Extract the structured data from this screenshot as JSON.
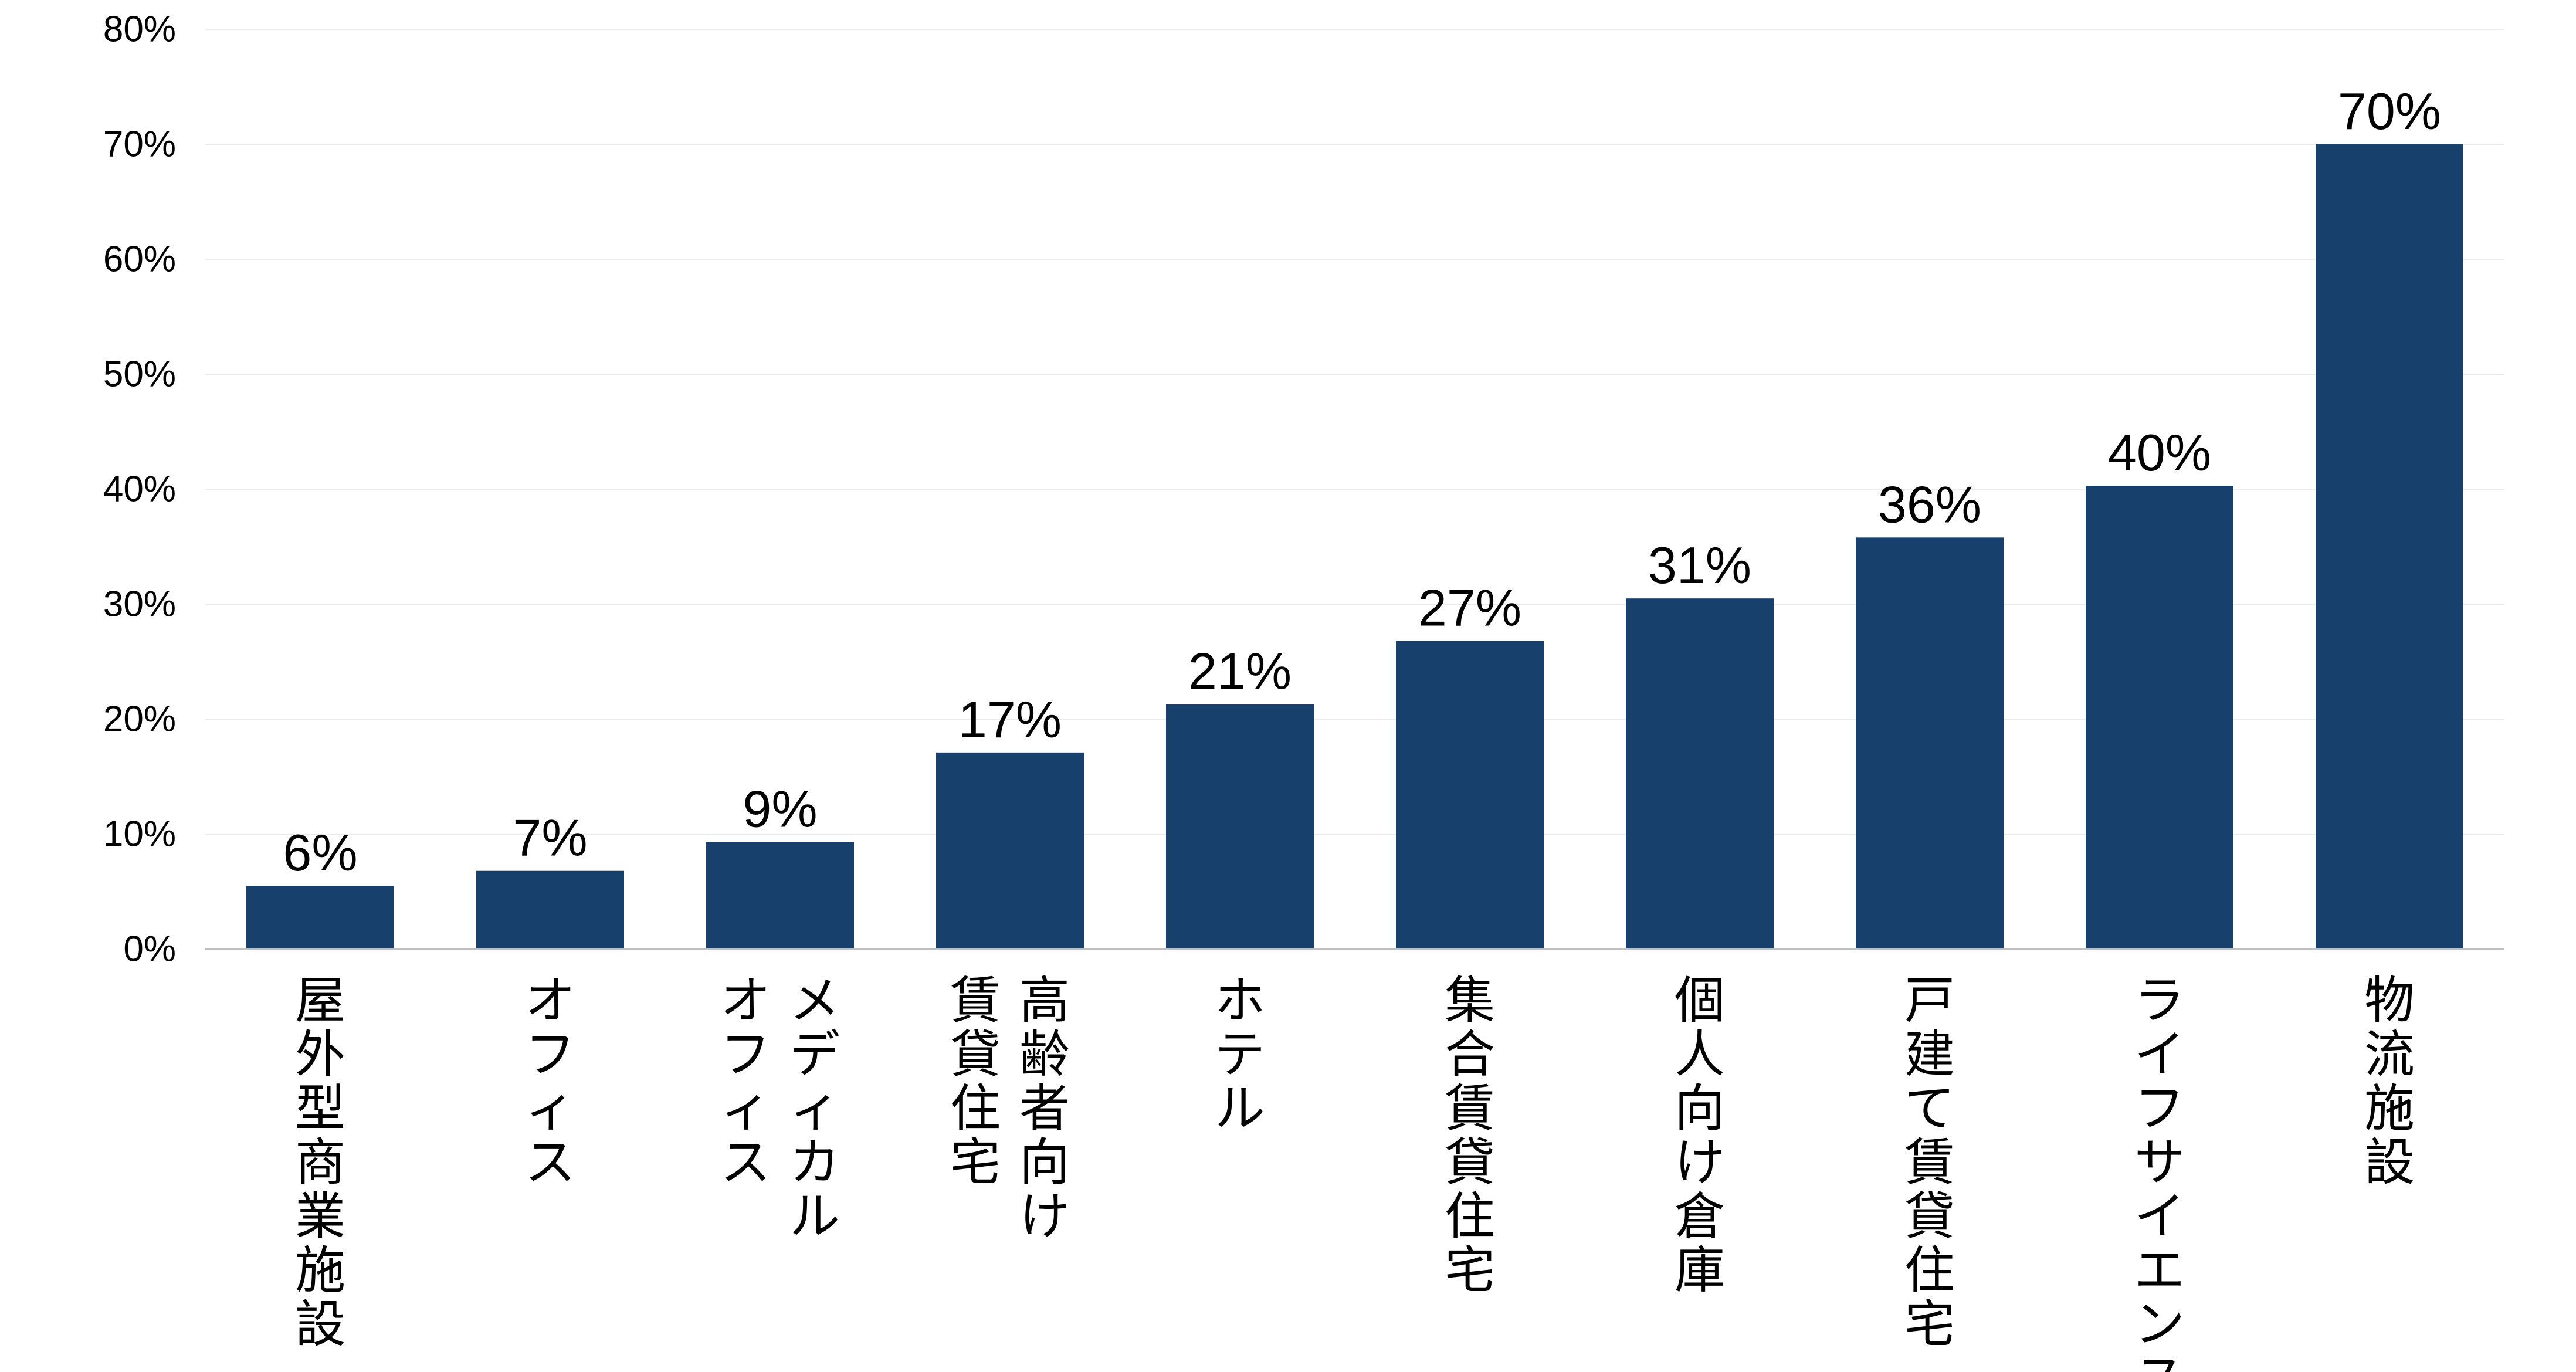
{
  "chart_data": {
    "type": "bar",
    "categories": [
      "屋外型商業施設",
      "オフィス",
      "メディカルオフィス",
      "高齢者向け賃貸住宅",
      "ホテル",
      "集合賃貸住宅",
      "個人向け倉庫",
      "戸建て賃貸住宅",
      "ライフサイエンス",
      "物流施設"
    ],
    "category_lines": [
      [
        "屋外型商業施設"
      ],
      [
        "オフィス"
      ],
      [
        "メディカル",
        "オフィス"
      ],
      [
        "高齢者向け",
        "賃貸住宅"
      ],
      [
        "ホテル"
      ],
      [
        "集合賃貸住宅"
      ],
      [
        "個人向け倉庫"
      ],
      [
        "戸建て賃貸住宅"
      ],
      [
        "ライフサイエンス"
      ],
      [
        "物流施設"
      ]
    ],
    "values": [
      5.5,
      6.8,
      9.3,
      17.1,
      21.3,
      26.8,
      30.5,
      35.8,
      40.3,
      70.0
    ],
    "data_labels": [
      "6%",
      "7%",
      "9%",
      "17%",
      "21%",
      "27%",
      "31%",
      "36%",
      "40%",
      "70%"
    ],
    "y_ticks": [
      0,
      10,
      20,
      30,
      40,
      50,
      60,
      70,
      80
    ],
    "y_tick_labels": [
      "0%",
      "10%",
      "20%",
      "30%",
      "40%",
      "50%",
      "60%",
      "70%",
      "80%"
    ],
    "ylim": [
      0,
      80
    ],
    "grid": true,
    "bar_color": "#17406D",
    "title": "",
    "xlabel": "",
    "ylabel": ""
  }
}
